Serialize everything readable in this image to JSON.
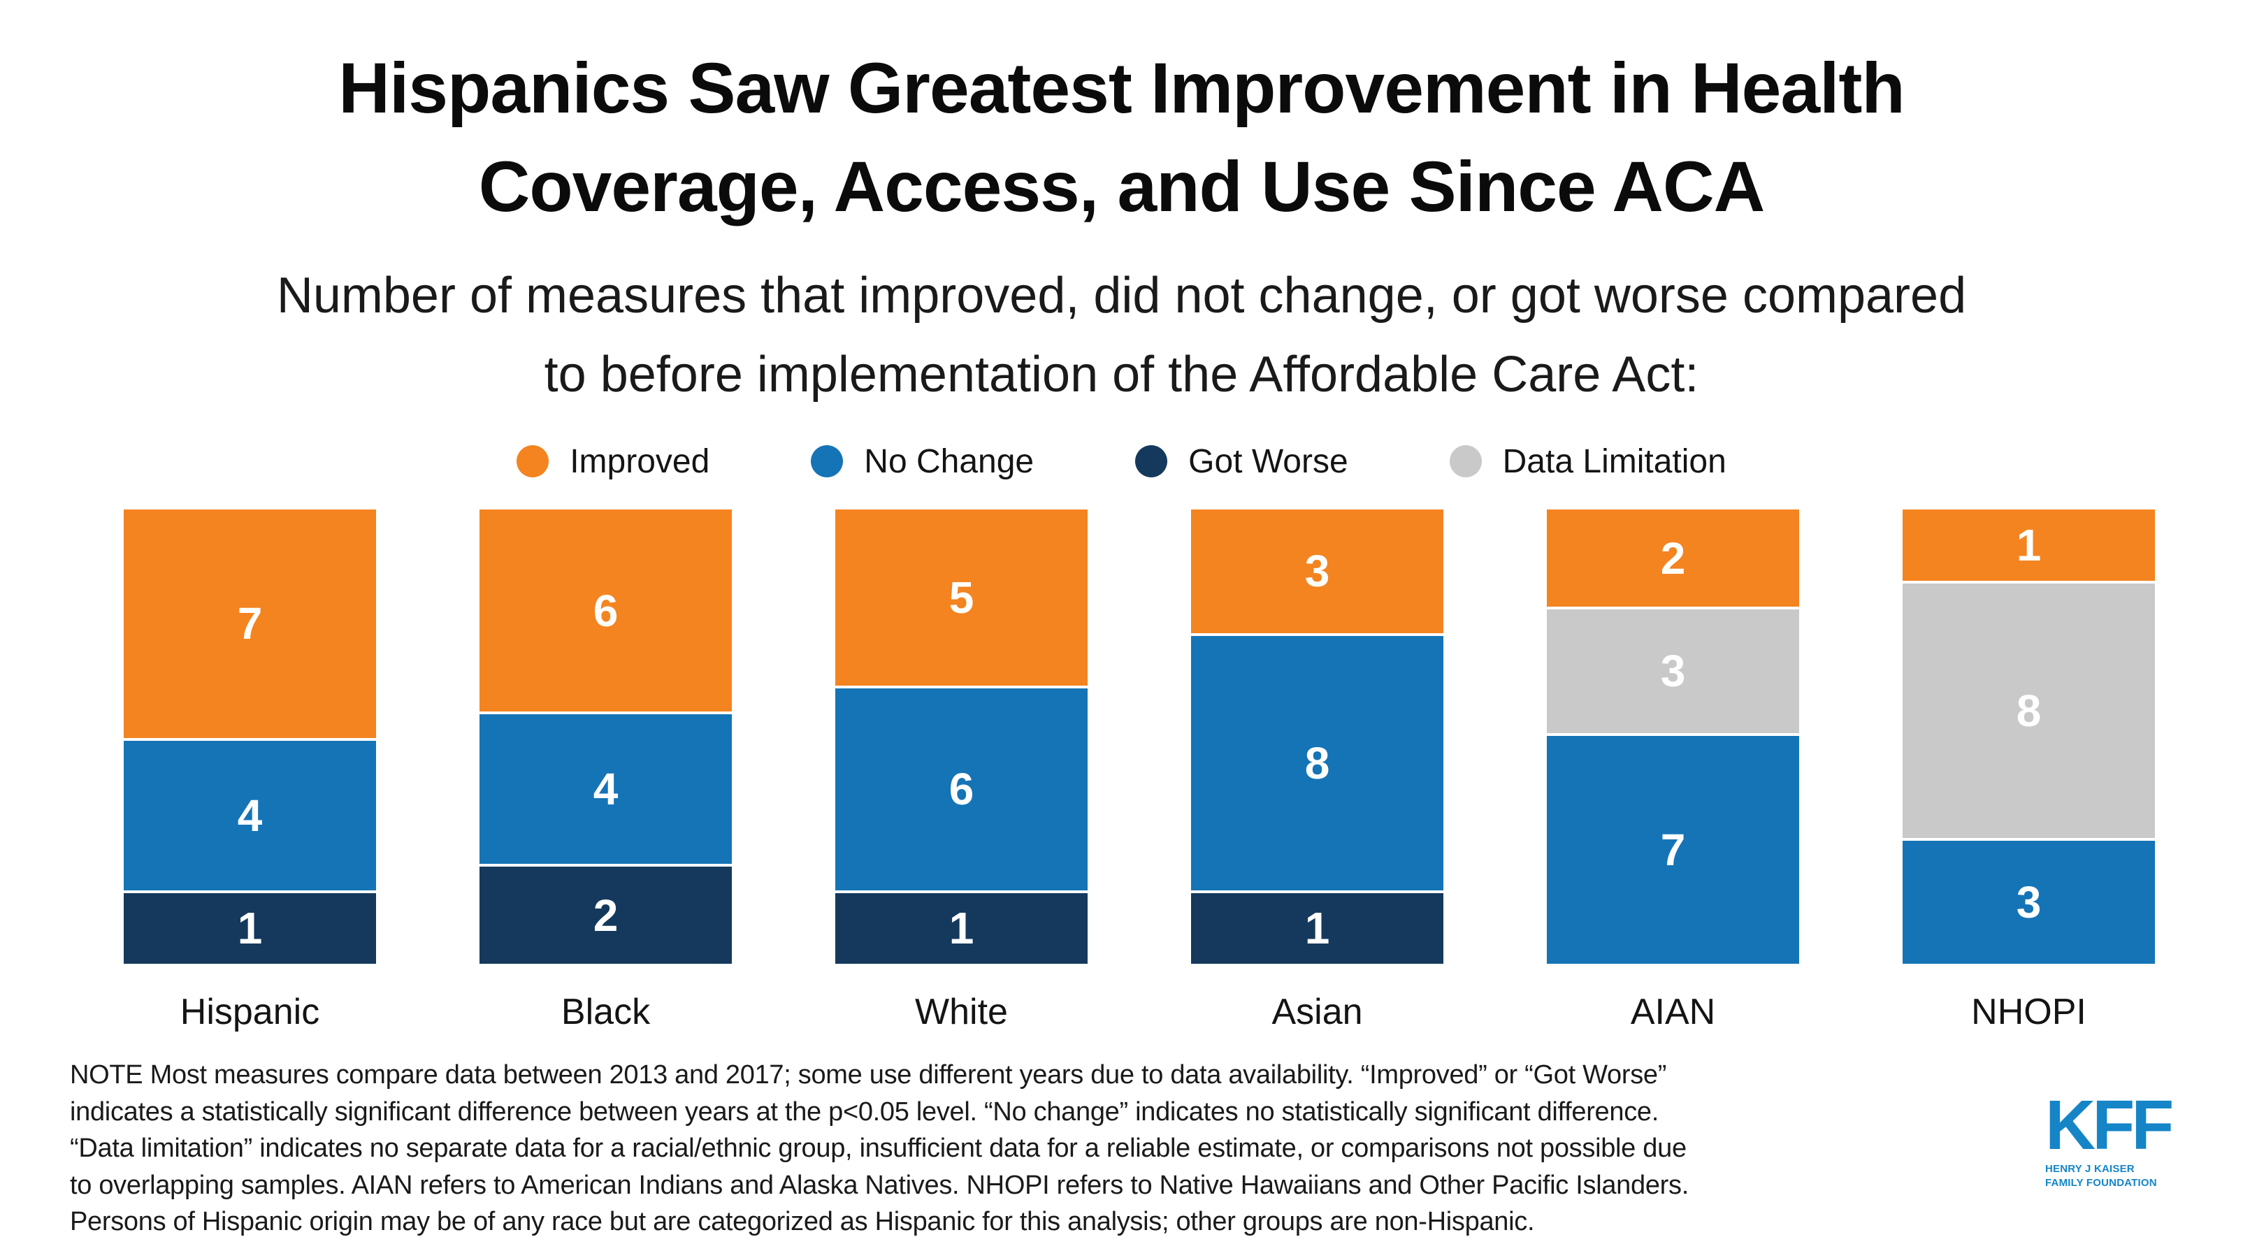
{
  "page": {
    "background": "#ffffff"
  },
  "title": {
    "lines": [
      "Hispanics Saw Greatest Improvement in Health",
      "Coverage, Access, and Use Since ACA"
    ]
  },
  "subtitle": {
    "lines": [
      "Number of measures that improved, did not change, or got worse compared",
      "to before implementation of the Affordable Care Act:"
    ]
  },
  "legend": {
    "items": [
      {
        "label": "Improved",
        "color": "#F38420"
      },
      {
        "label": "No Change",
        "color": "#1574B6"
      },
      {
        "label": "Got Worse",
        "color": "#14395C"
      },
      {
        "label": "Data Limitation",
        "color": "#C9C9C9"
      }
    ]
  },
  "colors": {
    "improved": "#F38420",
    "no_change": "#1574B6",
    "got_worse": "#14395C",
    "data_limitation": "#C9C9C9",
    "logo_blue": "#1585C8",
    "value_text": "#ffffff"
  },
  "chart_data": {
    "type": "bar",
    "stacked": true,
    "title": "Hispanics Saw Greatest Improvement in Health Coverage, Access, and Use Since ACA",
    "subtitle": "Number of measures that improved, did not change, or got worse compared to before implementation of the Affordable Care Act:",
    "categories": [
      "Hispanic",
      "Black",
      "White",
      "Asian",
      "AIAN",
      "NHOPI"
    ],
    "series": [
      {
        "name": "Improved",
        "color": "#F38420",
        "values": [
          7,
          6,
          5,
          3,
          2,
          1
        ]
      },
      {
        "name": "Data Limitation",
        "color": "#C9C9C9",
        "values": [
          0,
          0,
          0,
          0,
          3,
          8
        ]
      },
      {
        "name": "No Change",
        "color": "#1574B6",
        "values": [
          4,
          4,
          6,
          8,
          7,
          3
        ]
      },
      {
        "name": "Got Worse",
        "color": "#14395C",
        "values": [
          1,
          2,
          1,
          1,
          0,
          0
        ]
      }
    ],
    "stack_order_top_to_bottom": [
      "Improved",
      "Data Limitation",
      "No Change",
      "Got Worse"
    ],
    "total_per_bar": 12,
    "value_labels_shown": true,
    "legend_position": "top",
    "grid": false,
    "axes_shown": false
  },
  "note": {
    "lines": [
      "NOTE Most measures compare data between 2013 and 2017; some use different years due to data availability. “Improved” or “Got Worse”",
      "indicates a statistically significant difference between years at the p<0.05 level. “No change” indicates no statistically significant difference.",
      "“Data limitation” indicates no separate data for a racial/ethnic group, insufficient data for a reliable estimate, or comparisons not possible due",
      "to overlapping samples. AIAN refers to American Indians and Alaska Natives. NHOPI refers to Native Hawaiians and Other Pacific Islanders.",
      "Persons of Hispanic origin may be of any race but are categorized as Hispanic for this analysis; other groups are non-Hispanic."
    ]
  },
  "logo": {
    "text": "KFF",
    "sub_line1": "HENRY J KAISER",
    "sub_line2": "FAMILY FOUNDATION",
    "color": "#1585C8"
  }
}
